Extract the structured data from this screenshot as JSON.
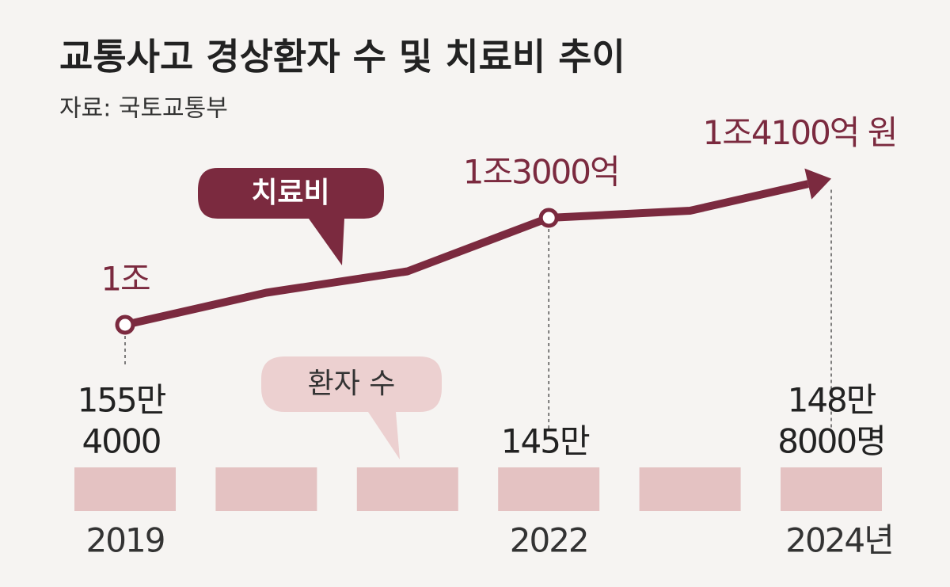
{
  "title": "교통사고 경상환자 수 및 치료비 추이",
  "source": "자료: 국토교통부",
  "chart_data": [
    {
      "type": "line",
      "categories": [
        "2019",
        null,
        null,
        "2022",
        null,
        "2024년"
      ],
      "series": [
        {
          "name": "치료비",
          "color": "#7b2a3f",
          "values": [
            10000,
            10900,
            11500,
            13000,
            13200,
            14100
          ],
          "value_labels": [
            "1조",
            null,
            null,
            "1조3000억",
            null,
            "1조4100억 원"
          ]
        }
      ],
      "ylim": [
        9000,
        15000
      ]
    },
    {
      "type": "bar",
      "categories": [
        "2019",
        null,
        null,
        "2022",
        null,
        "2024년"
      ],
      "series": [
        {
          "name": "환자 수",
          "color": "#e4c2c2",
          "values": [
            1554000,
            null,
            null,
            1450000,
            null,
            1488000
          ],
          "value_labels": [
            [
              "155만",
              "4000"
            ],
            null,
            null,
            [
              "145만"
            ],
            null,
            [
              "148만",
              "8000명"
            ]
          ]
        }
      ]
    }
  ]
}
